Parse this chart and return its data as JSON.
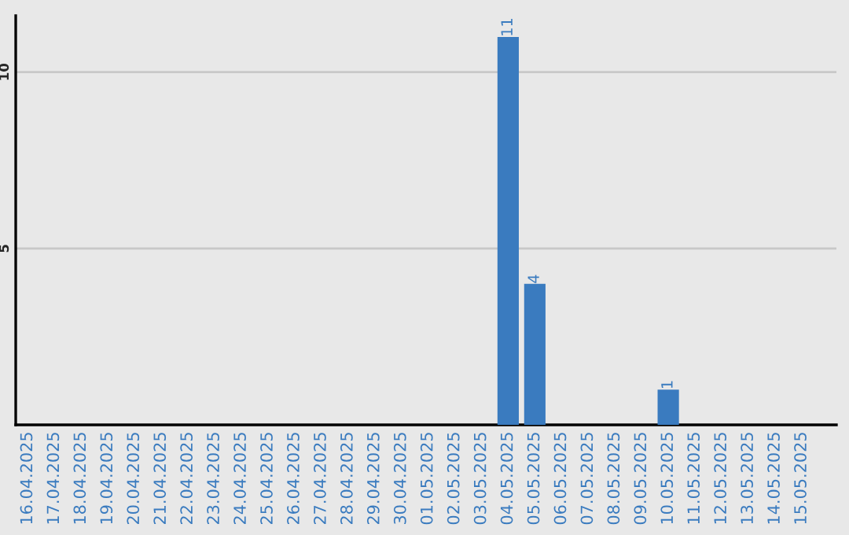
{
  "chart_data": {
    "type": "bar",
    "categories": [
      "16.04.2025",
      "17.04.2025",
      "18.04.2025",
      "19.04.2025",
      "20.04.2025",
      "21.04.2025",
      "22.04.2025",
      "23.04.2025",
      "24.04.2025",
      "25.04.2025",
      "26.04.2025",
      "27.04.2025",
      "28.04.2025",
      "29.04.2025",
      "30.04.2025",
      "01.05.2025",
      "02.05.2025",
      "03.05.2025",
      "04.05.2025",
      "05.05.2025",
      "06.05.2025",
      "07.05.2025",
      "08.05.2025",
      "09.05.2025",
      "10.05.2025",
      "11.05.2025",
      "12.05.2025",
      "13.05.2025",
      "14.05.2025",
      "15.05.2025"
    ],
    "values": [
      0,
      0,
      0,
      0,
      0,
      0,
      0,
      0,
      0,
      0,
      0,
      0,
      0,
      0,
      0,
      0,
      0,
      0,
      11,
      4,
      0,
      0,
      0,
      0,
      1,
      0,
      0,
      0,
      0,
      0
    ],
    "value_labels": [
      null,
      null,
      null,
      null,
      null,
      null,
      null,
      null,
      null,
      null,
      null,
      null,
      null,
      null,
      null,
      null,
      null,
      null,
      "11",
      "4",
      null,
      null,
      null,
      null,
      "1",
      null,
      null,
      null,
      null,
      null
    ],
    "color": "#3a7bbf",
    "ylim": [
      0,
      11.6
    ],
    "yticks": [
      5,
      10
    ],
    "grid": "y",
    "legend": false
  }
}
